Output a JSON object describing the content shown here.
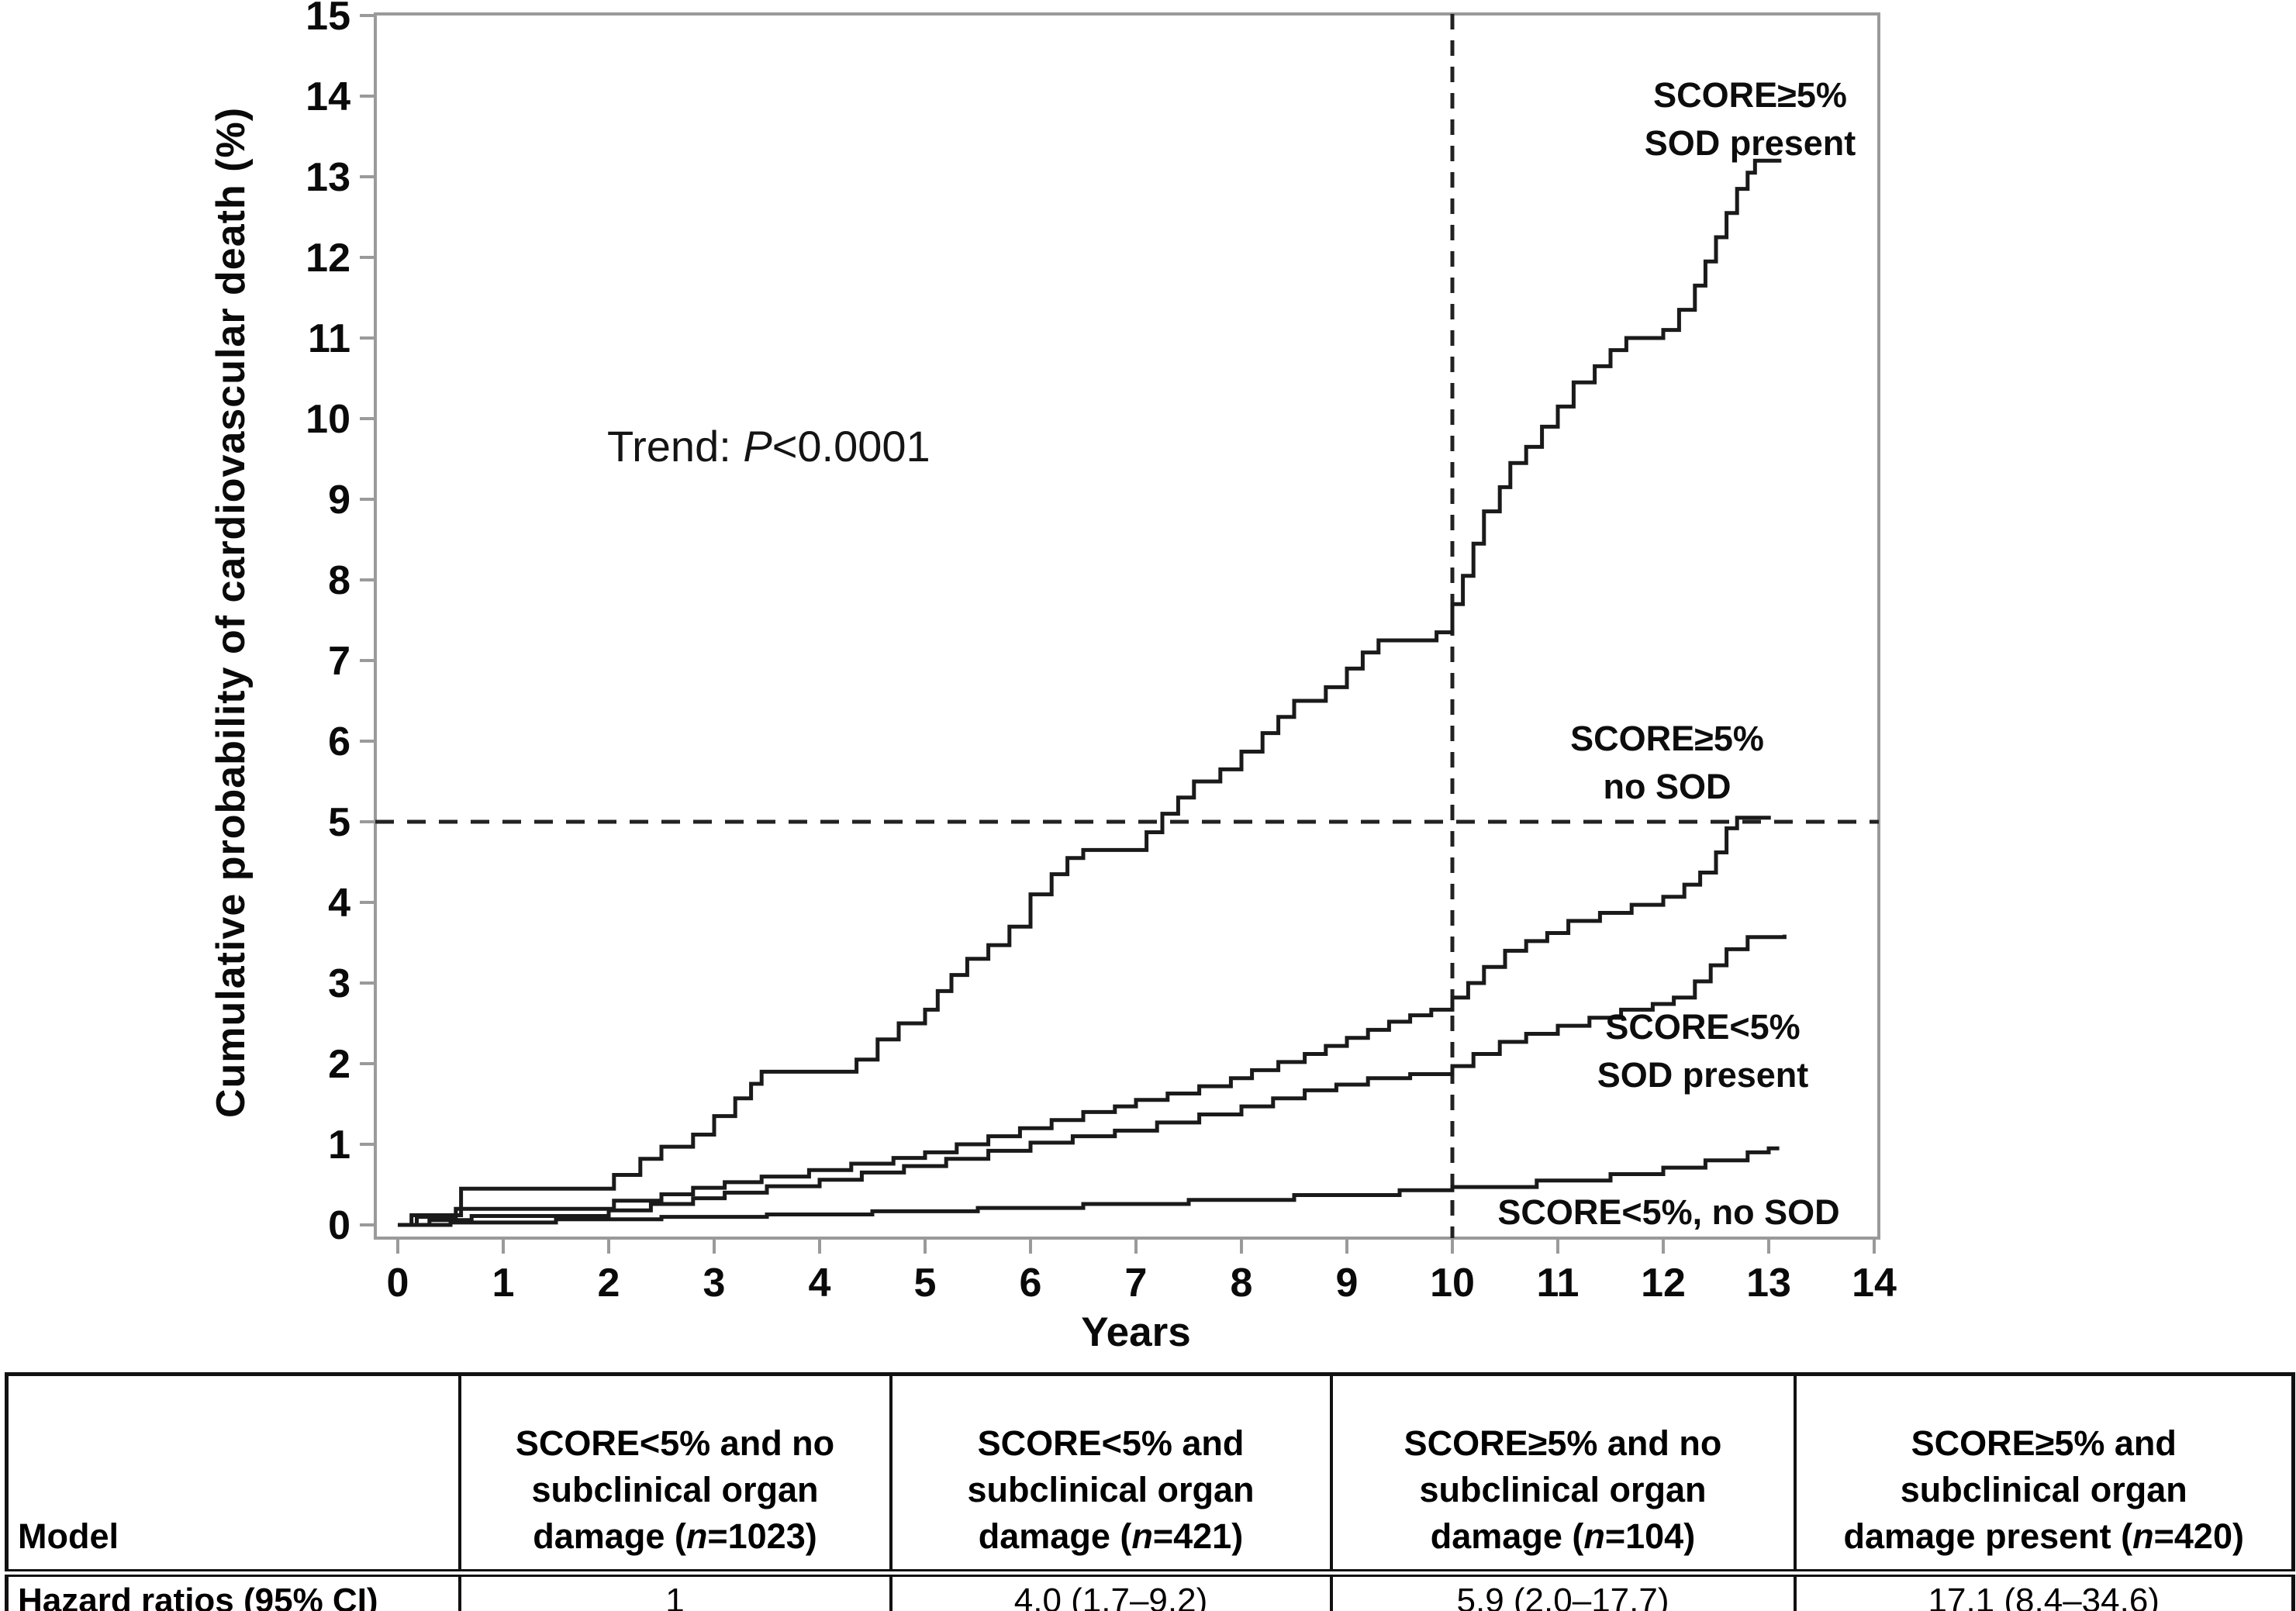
{
  "chart": {
    "y_axis_title": "Cumulative probability of cardiovascular death (%)",
    "x_axis_title": "Years",
    "trend_annotation": [
      {
        "t": "Trend: "
      },
      {
        "t": "P",
        "i": true
      },
      {
        "t": "<0.0001"
      }
    ],
    "curve_labels": {
      "ge5_sod": [
        "SCORE≥5%",
        "SOD present"
      ],
      "ge5_no_sod": [
        "SCORE≥5%",
        "no SOD"
      ],
      "lt5_sod": [
        "SCORE<5%",
        "SOD present"
      ],
      "lt5_no_sod": [
        "SCORE<5%, no SOD"
      ]
    }
  },
  "chart_data": {
    "type": "line",
    "subtype": "kaplan-meier-step",
    "title": "",
    "xlabel": "Years",
    "ylabel": "Cumulative probability of cardiovascular death (%)",
    "xlim": [
      0,
      14
    ],
    "ylim": [
      0,
      15
    ],
    "x_ticks": [
      0,
      1,
      2,
      3,
      4,
      5,
      6,
      7,
      8,
      9,
      10,
      11,
      12,
      13,
      14
    ],
    "y_ticks": [
      0,
      1,
      2,
      3,
      4,
      5,
      6,
      7,
      8,
      9,
      10,
      11,
      12,
      13,
      14,
      15
    ],
    "grid": false,
    "legend_position": "inline-labels",
    "annotation": "Trend: P<0.0001",
    "reference_lines": {
      "horizontal_y": 5,
      "vertical_x": 10,
      "style": "dashed"
    },
    "series": [
      {
        "key": "score-ge5-sod-present",
        "name": "SCORE≥5% SOD present",
        "points": [
          [
            0,
            0
          ],
          [
            0.13,
            0.12
          ],
          [
            0.6,
            0.45
          ],
          [
            2.05,
            0.62
          ],
          [
            2.3,
            0.82
          ],
          [
            2.5,
            0.97
          ],
          [
            2.8,
            1.12
          ],
          [
            3.0,
            1.35
          ],
          [
            3.2,
            1.57
          ],
          [
            3.35,
            1.75
          ],
          [
            3.45,
            1.9
          ],
          [
            4.35,
            2.05
          ],
          [
            4.55,
            2.3
          ],
          [
            4.75,
            2.5
          ],
          [
            5.0,
            2.67
          ],
          [
            5.12,
            2.9
          ],
          [
            5.25,
            3.1
          ],
          [
            5.4,
            3.3
          ],
          [
            5.6,
            3.47
          ],
          [
            5.8,
            3.7
          ],
          [
            6.0,
            4.1
          ],
          [
            6.2,
            4.35
          ],
          [
            6.35,
            4.55
          ],
          [
            6.5,
            4.65
          ],
          [
            7.1,
            4.87
          ],
          [
            7.25,
            5.1
          ],
          [
            7.4,
            5.3
          ],
          [
            7.55,
            5.5
          ],
          [
            7.8,
            5.65
          ],
          [
            8.0,
            5.87
          ],
          [
            8.2,
            6.1
          ],
          [
            8.35,
            6.3
          ],
          [
            8.5,
            6.5
          ],
          [
            8.8,
            6.67
          ],
          [
            9.0,
            6.9
          ],
          [
            9.15,
            7.1
          ],
          [
            9.3,
            7.25
          ],
          [
            9.85,
            7.35
          ],
          [
            10.0,
            7.7
          ],
          [
            10.1,
            8.05
          ],
          [
            10.2,
            8.45
          ],
          [
            10.3,
            8.85
          ],
          [
            10.45,
            9.15
          ],
          [
            10.55,
            9.45
          ],
          [
            10.7,
            9.65
          ],
          [
            10.85,
            9.9
          ],
          [
            11.0,
            10.15
          ],
          [
            11.15,
            10.45
          ],
          [
            11.35,
            10.65
          ],
          [
            11.5,
            10.85
          ],
          [
            11.65,
            11.0
          ],
          [
            12.0,
            11.1
          ],
          [
            12.15,
            11.35
          ],
          [
            12.3,
            11.65
          ],
          [
            12.4,
            11.95
          ],
          [
            12.5,
            12.25
          ],
          [
            12.6,
            12.55
          ],
          [
            12.7,
            12.85
          ],
          [
            12.8,
            13.05
          ],
          [
            12.87,
            13.2
          ],
          [
            13.12,
            13.2
          ]
        ]
      },
      {
        "key": "score-ge5-no-sod",
        "name": "SCORE≥5% no SOD",
        "points": [
          [
            0,
            0
          ],
          [
            0.18,
            0.1
          ],
          [
            0.55,
            0.2
          ],
          [
            2.05,
            0.3
          ],
          [
            2.5,
            0.38
          ],
          [
            2.8,
            0.46
          ],
          [
            3.1,
            0.53
          ],
          [
            3.45,
            0.6
          ],
          [
            3.9,
            0.68
          ],
          [
            4.3,
            0.76
          ],
          [
            4.7,
            0.83
          ],
          [
            5.0,
            0.9
          ],
          [
            5.3,
            1.0
          ],
          [
            5.6,
            1.1
          ],
          [
            5.9,
            1.2
          ],
          [
            6.2,
            1.3
          ],
          [
            6.5,
            1.4
          ],
          [
            6.8,
            1.47
          ],
          [
            7.0,
            1.55
          ],
          [
            7.3,
            1.63
          ],
          [
            7.6,
            1.72
          ],
          [
            7.9,
            1.82
          ],
          [
            8.1,
            1.92
          ],
          [
            8.35,
            2.02
          ],
          [
            8.6,
            2.12
          ],
          [
            8.8,
            2.22
          ],
          [
            9.0,
            2.32
          ],
          [
            9.2,
            2.42
          ],
          [
            9.4,
            2.52
          ],
          [
            9.6,
            2.6
          ],
          [
            9.8,
            2.67
          ],
          [
            10.0,
            2.82
          ],
          [
            10.15,
            3.0
          ],
          [
            10.3,
            3.2
          ],
          [
            10.5,
            3.4
          ],
          [
            10.7,
            3.52
          ],
          [
            10.9,
            3.62
          ],
          [
            11.1,
            3.77
          ],
          [
            11.4,
            3.87
          ],
          [
            11.7,
            3.97
          ],
          [
            12.0,
            4.07
          ],
          [
            12.2,
            4.22
          ],
          [
            12.35,
            4.37
          ],
          [
            12.5,
            4.62
          ],
          [
            12.6,
            4.92
          ],
          [
            12.7,
            5.05
          ],
          [
            13.02,
            5.05
          ]
        ]
      },
      {
        "key": "score-lt5-sod-present",
        "name": "SCORE<5% SOD present",
        "points": [
          [
            0,
            0
          ],
          [
            0.3,
            0.06
          ],
          [
            0.7,
            0.11
          ],
          [
            2.0,
            0.18
          ],
          [
            2.4,
            0.26
          ],
          [
            2.8,
            0.33
          ],
          [
            3.1,
            0.4
          ],
          [
            3.5,
            0.48
          ],
          [
            4.0,
            0.56
          ],
          [
            4.4,
            0.65
          ],
          [
            4.8,
            0.73
          ],
          [
            5.2,
            0.82
          ],
          [
            5.6,
            0.92
          ],
          [
            6.0,
            1.02
          ],
          [
            6.4,
            1.1
          ],
          [
            6.8,
            1.17
          ],
          [
            7.2,
            1.27
          ],
          [
            7.6,
            1.37
          ],
          [
            8.0,
            1.47
          ],
          [
            8.3,
            1.57
          ],
          [
            8.6,
            1.67
          ],
          [
            8.9,
            1.74
          ],
          [
            9.2,
            1.82
          ],
          [
            9.6,
            1.87
          ],
          [
            10.0,
            1.97
          ],
          [
            10.2,
            2.12
          ],
          [
            10.45,
            2.27
          ],
          [
            10.7,
            2.37
          ],
          [
            11.0,
            2.47
          ],
          [
            11.3,
            2.57
          ],
          [
            11.6,
            2.67
          ],
          [
            11.9,
            2.74
          ],
          [
            12.1,
            2.82
          ],
          [
            12.3,
            3.02
          ],
          [
            12.45,
            3.22
          ],
          [
            12.6,
            3.42
          ],
          [
            12.8,
            3.57
          ],
          [
            13.15,
            3.6
          ]
        ]
      },
      {
        "key": "score-lt5-no-sod",
        "name": "SCORE<5%, no SOD",
        "points": [
          [
            0,
            0
          ],
          [
            0.5,
            0.03
          ],
          [
            1.5,
            0.07
          ],
          [
            2.5,
            0.1
          ],
          [
            3.5,
            0.13
          ],
          [
            4.5,
            0.17
          ],
          [
            5.5,
            0.21
          ],
          [
            6.5,
            0.26
          ],
          [
            7.5,
            0.31
          ],
          [
            8.5,
            0.37
          ],
          [
            9.5,
            0.43
          ],
          [
            10.0,
            0.47
          ],
          [
            10.8,
            0.55
          ],
          [
            11.5,
            0.63
          ],
          [
            12.0,
            0.71
          ],
          [
            12.4,
            0.8
          ],
          [
            12.8,
            0.9
          ],
          [
            13.0,
            0.95
          ],
          [
            13.1,
            0.95
          ]
        ]
      }
    ]
  },
  "table": {
    "row_header_model": "Model",
    "row_header_hr": "Hazard ratios (95% CI)",
    "col_headers": [
      [
        {
          "t": "SCORE<5% and no"
        },
        {
          "br": true
        },
        {
          "t": "subclinical organ"
        },
        {
          "br": true
        },
        {
          "t": "damage ("
        },
        {
          "t": "n",
          "i": true
        },
        {
          "t": "=1023)"
        }
      ],
      [
        {
          "t": "SCORE<5% and"
        },
        {
          "br": true
        },
        {
          "t": "subclinical organ"
        },
        {
          "br": true
        },
        {
          "t": "damage ("
        },
        {
          "t": "n",
          "i": true
        },
        {
          "t": "=421)"
        }
      ],
      [
        {
          "t": "SCORE≥5% and no"
        },
        {
          "br": true
        },
        {
          "t": "subclinical organ"
        },
        {
          "br": true
        },
        {
          "t": "damage ("
        },
        {
          "t": "n",
          "i": true
        },
        {
          "t": "=104)"
        }
      ],
      [
        {
          "t": "SCORE≥5% and"
        },
        {
          "br": true
        },
        {
          "t": "subclinical organ"
        },
        {
          "br": true
        },
        {
          "t": "damage present ("
        },
        {
          "t": "n",
          "i": true
        },
        {
          "t": "=420)"
        }
      ]
    ],
    "hazard_ratios": [
      "1",
      "4.0 (1.7–9.2)",
      "5.9 (2.0–17.7)",
      "17.1 (8.4–34.6)"
    ]
  },
  "colors": {
    "curve": "#1a1a1a",
    "plot_border": "#9a9a9a",
    "reference_line": "#222222",
    "text": "#0a0a0a",
    "background": "#ffffff"
  }
}
